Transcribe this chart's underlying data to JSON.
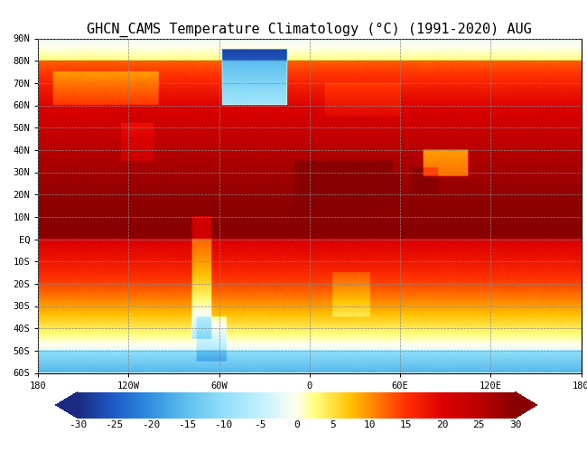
{
  "title": "GHCN_CAMS Temperature Climatology (°C) (1991-2020) AUG",
  "title_fontsize": 11,
  "colorbar_ticks": [
    -30,
    -25,
    -20,
    -15,
    -10,
    -5,
    0,
    5,
    10,
    15,
    20,
    25,
    30
  ],
  "vmin": -30,
  "vmax": 30,
  "lon_min": -180,
  "lon_max": 180,
  "lat_min": -60,
  "lat_max": 90,
  "lon_ticks": [
    -180,
    -120,
    -60,
    0,
    60,
    120,
    180
  ],
  "lon_labels": [
    "180",
    "120W",
    "60W",
    "0",
    "60E",
    "120E",
    "180"
  ],
  "lat_ticks": [
    90,
    80,
    70,
    60,
    50,
    40,
    30,
    20,
    10,
    0,
    -10,
    -20,
    -30,
    -40,
    -50,
    -60
  ],
  "lat_labels": [
    "90N",
    "80N",
    "70N",
    "60N",
    "50N",
    "40N",
    "30N",
    "20N",
    "10N",
    "EQ",
    "10S",
    "20S",
    "30S",
    "40S",
    "50S",
    "60S"
  ],
  "background_color": "#ffffff",
  "grid_color": "#888888",
  "colormap_colors": [
    [
      0.0,
      "#1a2a80"
    ],
    [
      0.083,
      "#1e5bc8"
    ],
    [
      0.167,
      "#3090e0"
    ],
    [
      0.25,
      "#60c0f0"
    ],
    [
      0.333,
      "#90dff8"
    ],
    [
      0.417,
      "#c0f0ff"
    ],
    [
      0.5,
      "#fffff0"
    ],
    [
      0.542,
      "#ffff80"
    ],
    [
      0.583,
      "#ffe040"
    ],
    [
      0.625,
      "#ffc000"
    ],
    [
      0.667,
      "#ff9000"
    ],
    [
      0.708,
      "#ff6000"
    ],
    [
      0.75,
      "#ff3000"
    ],
    [
      0.833,
      "#dd0000"
    ],
    [
      0.917,
      "#bb0000"
    ],
    [
      1.0,
      "#880000"
    ]
  ]
}
